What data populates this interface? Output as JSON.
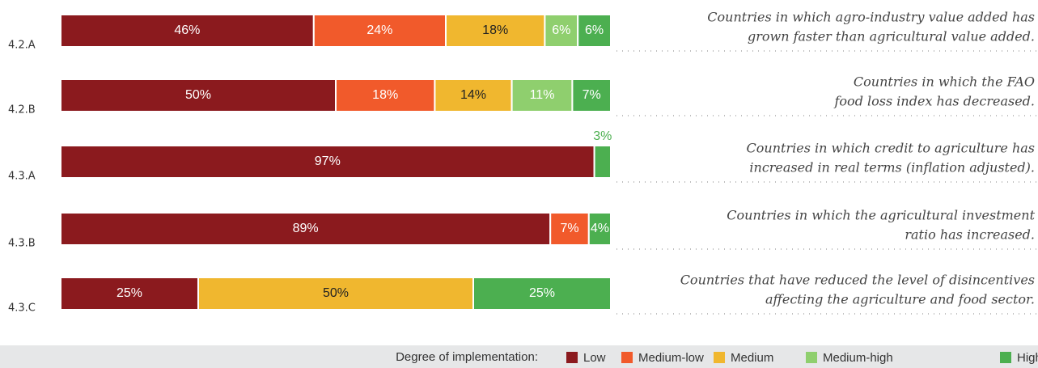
{
  "chart_data": {
    "type": "stacked-bar-horizontal",
    "categories": [
      "4.2.A",
      "4.2.B",
      "4.3.A",
      "4.3.B",
      "4.3.C"
    ],
    "descriptions": [
      [
        "Countries in which agro-industry value added has",
        "grown faster than agricultural value added."
      ],
      [
        "Countries in which the FAO",
        "food loss index has decreased."
      ],
      [
        "Countries in which credit to agriculture has",
        "increased in real terms (inflation adjusted)."
      ],
      [
        "Countries in which the agricultural investment",
        "ratio has increased."
      ],
      [
        "Countries that have reduced the level of disincentives",
        "affecting the agriculture and food sector."
      ]
    ],
    "xlim": [
      0,
      100
    ],
    "legend_title": "Degree of implementation:",
    "series": [
      {
        "name": "Low",
        "color": "#8b1a1e",
        "values": [
          46,
          50,
          97,
          89,
          25
        ],
        "value_labels": [
          "46%",
          "50%",
          "97%",
          "89%",
          "25%"
        ]
      },
      {
        "name": "Medium-low",
        "color": "#f15a2b",
        "values": [
          24,
          18,
          null,
          7,
          null
        ],
        "value_labels": [
          "24%",
          "18%",
          null,
          "7%",
          null
        ]
      },
      {
        "name": "Medium",
        "color": "#f0b72f",
        "values": [
          18,
          14,
          null,
          null,
          50
        ],
        "value_labels": [
          "18%",
          "14%",
          null,
          null,
          "50%"
        ]
      },
      {
        "name": "Medium-high",
        "color": "#8fcf6e",
        "values": [
          6,
          11,
          null,
          null,
          null
        ],
        "value_labels": [
          "6%",
          "11%",
          null,
          null,
          null
        ]
      },
      {
        "name": "High",
        "color": "#4caf50",
        "values": [
          6,
          7,
          3,
          4,
          25
        ],
        "value_labels": [
          "6%",
          "7%",
          "3%",
          "4%",
          "25%"
        ]
      }
    ]
  }
}
